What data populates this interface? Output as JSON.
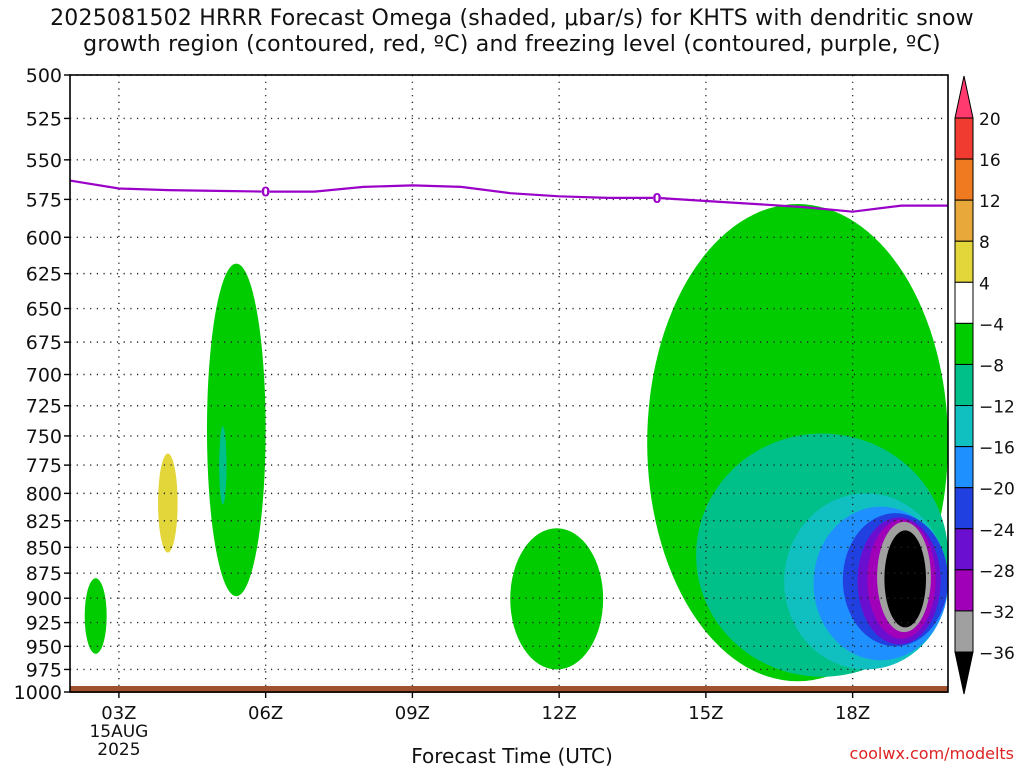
{
  "title_line1": "2025081502 HRRR Forecast Omega (shaded, μbar/s) for KHTS with dendritic snow",
  "title_line2": "growth region (contoured, red, ºC) and freezing level (contoured, purple, ºC)",
  "credit": "coolwx.com/modelts",
  "colors": {
    "freezing_level": "#9a00c8",
    "ground": "#a0522d"
  },
  "chart_data": {
    "type": "heatmap",
    "title": "2025081502 HRRR Forecast Omega (shaded, μbar/s) for KHTS with dendritic snow growth region (contoured, red, ºC) and freezing level (contoured, purple, ºC)",
    "xlabel": "Forecast Time (UTC)",
    "ylabel": "",
    "x_ticks": [
      "03Z",
      "06Z",
      "09Z",
      "12Z",
      "15Z",
      "18Z"
    ],
    "x_tick_hours": [
      3,
      6,
      9,
      12,
      15,
      18
    ],
    "x_sublabels": [
      "15AUG",
      "2025"
    ],
    "xlim": [
      2,
      19.95
    ],
    "y_ticks": [
      500,
      525,
      550,
      575,
      600,
      625,
      650,
      675,
      700,
      725,
      750,
      775,
      800,
      825,
      850,
      875,
      900,
      925,
      950,
      975,
      1000
    ],
    "ylim": [
      500,
      1000
    ],
    "y_scale": "log-pressure (inverted)",
    "grid": true,
    "colorbar": {
      "levels": [
        20,
        16,
        12,
        8,
        4,
        -4,
        -8,
        -12,
        -16,
        -20,
        -24,
        -28,
        -32,
        -36
      ],
      "colors": [
        "#ff3a6f",
        "#f03c30",
        "#f07a20",
        "#e8a83a",
        "#e2d63a",
        "#ffffff",
        "#00cc00",
        "#00c08a",
        "#10c0c0",
        "#1e90ff",
        "#2040e0",
        "#6a0fd0",
        "#a000b8",
        "#a0a0a0",
        "#000000"
      ],
      "extend": "both"
    },
    "freezing_level_contour": {
      "label": "0",
      "hours": [
        2,
        3,
        4,
        5,
        6,
        7,
        8,
        9,
        10,
        11,
        12,
        13,
        14,
        15,
        16,
        17,
        18,
        19,
        19.95
      ],
      "pressure": [
        563,
        568,
        569,
        569.5,
        570,
        570,
        567,
        566,
        567,
        571,
        573,
        574,
        574,
        576,
        578,
        580,
        583,
        579,
        579
      ]
    },
    "omega_regions": [
      {
        "level": "-4 to -8",
        "hours": [
          2.3,
          2.75
        ],
        "pressure": [
          880,
          958
        ]
      },
      {
        "level": "4 to 8",
        "hours": [
          3.8,
          4.2
        ],
        "pressure": [
          765,
          855
        ]
      },
      {
        "level": "-4 to -8",
        "hours": [
          4.8,
          6.0
        ],
        "pressure": [
          618,
          898
        ]
      },
      {
        "level": "-8 to -12",
        "hours": [
          5.05,
          5.2
        ],
        "pressure": [
          742,
          810
        ]
      },
      {
        "level": "-4 to -8",
        "hours": [
          11.0,
          12.9
        ],
        "pressure": [
          832,
          975
        ]
      },
      {
        "level": "-4 to -8",
        "hours": [
          13.8,
          19.95
        ],
        "pressure": [
          578,
          988
        ]
      },
      {
        "level": "-8 to -12",
        "hours": [
          14.8,
          19.95
        ],
        "pressure": [
          748,
          983
        ]
      },
      {
        "level": "-12 to -16",
        "hours": [
          16.6,
          19.95
        ],
        "pressure": [
          800,
          975
        ]
      },
      {
        "level": "-16 to -20",
        "hours": [
          17.2,
          19.95
        ],
        "pressure": [
          812,
          965
        ]
      },
      {
        "level": "-20 to -24",
        "hours": [
          17.8,
          19.95
        ],
        "pressure": [
          818,
          950
        ]
      },
      {
        "level": "-24 to -28",
        "hours": [
          18.1,
          19.8
        ],
        "pressure": [
          822,
          948
        ]
      },
      {
        "level": "-28 to -32",
        "hours": [
          18.3,
          19.7
        ],
        "pressure": [
          824,
          942
        ]
      },
      {
        "level": "-32 to -36",
        "hours": [
          18.5,
          19.6
        ],
        "pressure": [
          826,
          935
        ]
      },
      {
        "level": "< -36",
        "hours": [
          18.65,
          19.5
        ],
        "pressure": [
          834,
          930
        ]
      }
    ]
  }
}
